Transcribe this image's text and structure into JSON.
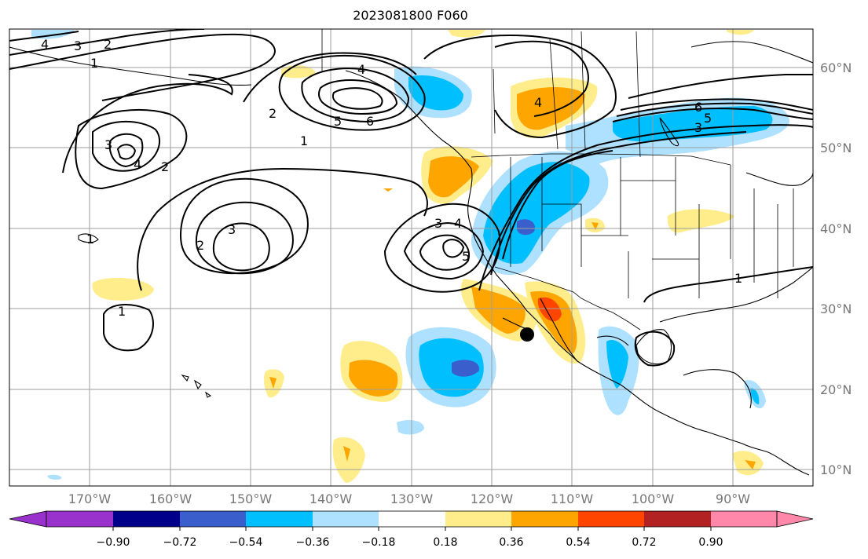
{
  "title": "2023081800 F060",
  "map": {
    "projection": "plate-carree",
    "lon_range": [
      "180°W",
      "80°W"
    ],
    "lat_range": [
      "7°N",
      "65°N"
    ],
    "gridlines": true,
    "marker": "black dot near 116°W, 26.5°N"
  },
  "lat_labels": [
    "60°N",
    "50°N",
    "40°N",
    "30°N",
    "20°N",
    "10°N"
  ],
  "lon_labels": [
    "170°W",
    "160°W",
    "150°W",
    "140°W",
    "130°W",
    "120°W",
    "110°W",
    "100°W",
    "90°W"
  ],
  "contour_labels": [
    "4",
    "3",
    "2",
    "1",
    "4",
    "5",
    "6",
    "2",
    "1",
    "3",
    "4",
    "2",
    "2",
    "3",
    "1",
    "4",
    "3",
    "4",
    "5",
    "6",
    "5",
    "3",
    "1",
    "1"
  ],
  "colorbar": {
    "extend": "both",
    "labels": [
      "−0.90",
      "−0.72",
      "−0.54",
      "−0.36",
      "−0.18",
      "0.18",
      "0.36",
      "0.54",
      "0.72",
      "0.90"
    ],
    "colors": [
      "#9932cc",
      "#00008b",
      "#3a5fcd",
      "#00bfff",
      "#aee0ff",
      "#ffffff",
      "#ffec8b",
      "#ffa500",
      "#ff4500",
      "#b22222",
      "#ff88aa"
    ]
  }
}
